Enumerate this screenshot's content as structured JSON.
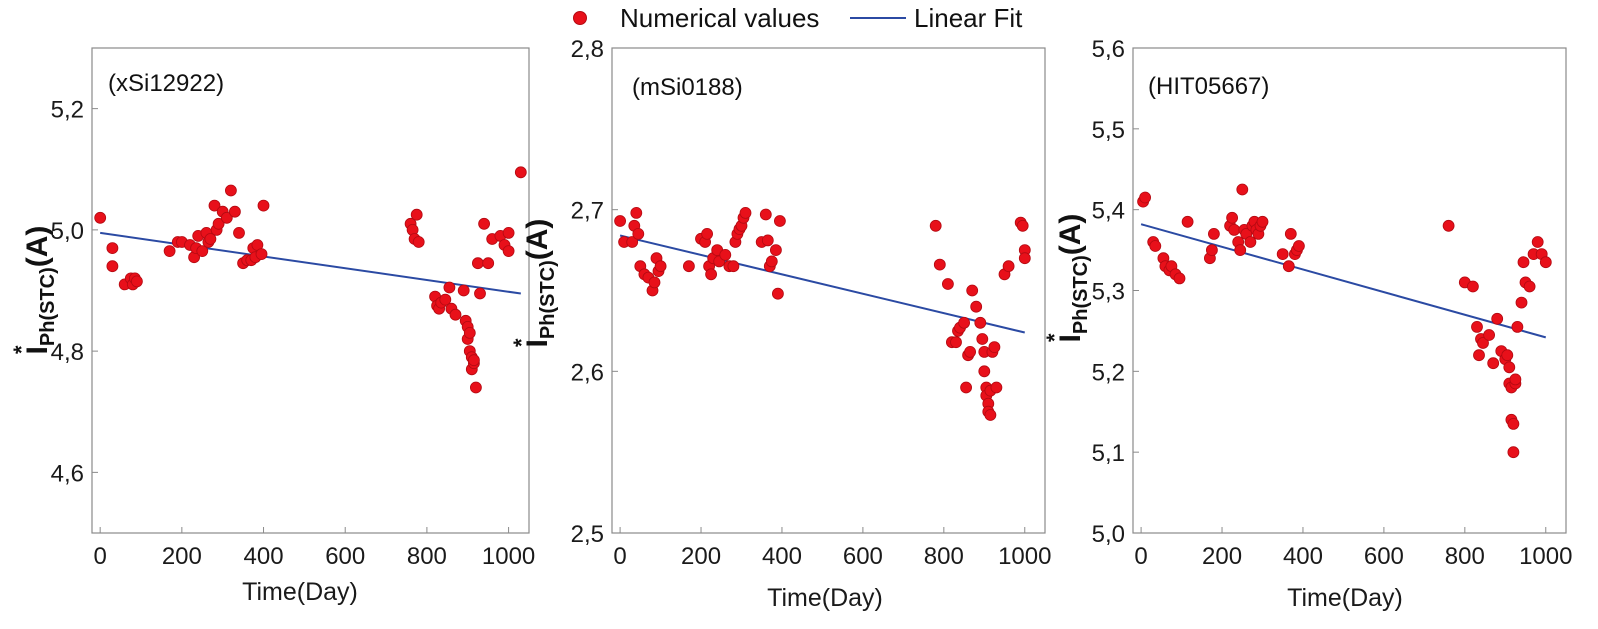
{
  "legend": {
    "points_label": "Numerical values",
    "line_label": "Linear Fit"
  },
  "colors": {
    "points": "#e8101a",
    "fit": "#2b4aa3",
    "axis": "#8a8a8a"
  },
  "chart_data": [
    {
      "type": "scatter",
      "title": "(xSi12922)",
      "xlabel": "Time(Day)",
      "ylabel": "I*Ph(STC)(A)",
      "xlim": [
        -20,
        1050
      ],
      "ylim": [
        4.5,
        5.3
      ],
      "xticks": [
        0,
        200,
        400,
        600,
        800,
        1000
      ],
      "xtick_labels": [
        "0",
        "200",
        "400",
        "600",
        "800",
        "1000"
      ],
      "yticks": [
        4.6,
        4.8,
        5.0,
        5.2
      ],
      "ytick_labels": [
        "4,6",
        "4,8",
        "5,0",
        "5,2"
      ],
      "fit": {
        "x": [
          0,
          1030
        ],
        "y": [
          4.995,
          4.895
        ]
      },
      "points": {
        "x": [
          0,
          30,
          30,
          60,
          75,
          80,
          85,
          90,
          170,
          190,
          200,
          220,
          230,
          235,
          240,
          250,
          260,
          265,
          270,
          280,
          285,
          290,
          300,
          310,
          320,
          330,
          340,
          350,
          360,
          370,
          375,
          380,
          385,
          395,
          400,
          760,
          765,
          770,
          775,
          780,
          820,
          825,
          830,
          835,
          845,
          855,
          860,
          870,
          890,
          895,
          900,
          900,
          905,
          905,
          910,
          910,
          915,
          915,
          920,
          925,
          930,
          940,
          950,
          960,
          980,
          990,
          1000,
          1000,
          1030
        ],
        "y": [
          5.02,
          4.97,
          4.94,
          4.91,
          4.92,
          4.91,
          4.92,
          4.915,
          4.965,
          4.98,
          4.98,
          4.975,
          4.955,
          4.97,
          4.99,
          4.965,
          4.995,
          4.98,
          4.985,
          5.04,
          5.0,
          5.01,
          5.03,
          5.02,
          5.065,
          5.03,
          4.995,
          4.945,
          4.95,
          4.95,
          4.97,
          4.955,
          4.975,
          4.96,
          5.04,
          5.01,
          5.0,
          4.985,
          5.025,
          4.98,
          4.89,
          4.875,
          4.87,
          4.88,
          4.885,
          4.905,
          4.87,
          4.86,
          4.9,
          4.85,
          4.84,
          4.82,
          4.83,
          4.8,
          4.79,
          4.77,
          4.78,
          4.785,
          4.74,
          4.945,
          4.895,
          5.01,
          4.945,
          4.985,
          4.99,
          4.975,
          4.965,
          4.995,
          5.095
        ]
      }
    },
    {
      "type": "scatter",
      "title": "(mSi0188)",
      "xlabel": "Time(Day)",
      "ylabel": "I*Ph(STC)(A)",
      "xlim": [
        -20,
        1050
      ],
      "ylim": [
        2.5,
        2.8
      ],
      "xticks": [
        0,
        200,
        400,
        600,
        800,
        1000
      ],
      "xtick_labels": [
        "0",
        "200",
        "400",
        "600",
        "800",
        "1000"
      ],
      "yticks": [
        2.5,
        2.6,
        2.7,
        2.8
      ],
      "ytick_labels": [
        "2,5",
        "2,6",
        "2,7",
        "2,8"
      ],
      "fit": {
        "x": [
          0,
          1000
        ],
        "y": [
          2.684,
          2.624
        ]
      },
      "points": {
        "x": [
          0,
          10,
          30,
          35,
          40,
          45,
          50,
          60,
          70,
          80,
          85,
          90,
          95,
          100,
          170,
          200,
          210,
          215,
          220,
          225,
          230,
          240,
          245,
          260,
          270,
          280,
          285,
          290,
          295,
          300,
          305,
          310,
          350,
          360,
          365,
          370,
          375,
          385,
          390,
          395,
          780,
          790,
          810,
          820,
          830,
          835,
          840,
          850,
          855,
          860,
          865,
          870,
          880,
          890,
          895,
          900,
          900,
          905,
          905,
          910,
          910,
          915,
          915,
          920,
          925,
          930,
          950,
          960,
          990,
          995,
          1000,
          1000
        ],
        "y": [
          2.693,
          2.68,
          2.68,
          2.69,
          2.698,
          2.685,
          2.665,
          2.66,
          2.658,
          2.65,
          2.655,
          2.67,
          2.662,
          2.665,
          2.665,
          2.682,
          2.68,
          2.685,
          2.665,
          2.66,
          2.67,
          2.675,
          2.668,
          2.672,
          2.665,
          2.665,
          2.68,
          2.685,
          2.688,
          2.69,
          2.695,
          2.698,
          2.68,
          2.697,
          2.681,
          2.665,
          2.668,
          2.675,
          2.648,
          2.693,
          2.69,
          2.666,
          2.654,
          2.618,
          2.618,
          2.625,
          2.627,
          2.63,
          2.59,
          2.61,
          2.612,
          2.65,
          2.64,
          2.63,
          2.62,
          2.612,
          2.6,
          2.59,
          2.585,
          2.58,
          2.575,
          2.573,
          2.588,
          2.612,
          2.615,
          2.59,
          2.66,
          2.665,
          2.692,
          2.69,
          2.675,
          2.67
        ]
      }
    },
    {
      "type": "scatter",
      "title": "(HIT05667)",
      "xlabel": "Time(Day)",
      "ylabel": "I*Ph(STC)(A)",
      "xlim": [
        -20,
        1050
      ],
      "ylim": [
        5.0,
        5.6
      ],
      "xticks": [
        0,
        200,
        400,
        600,
        800,
        1000
      ],
      "xtick_labels": [
        "0",
        "200",
        "400",
        "600",
        "800",
        "1000"
      ],
      "yticks": [
        5.0,
        5.1,
        5.2,
        5.3,
        5.4,
        5.5,
        5.6
      ],
      "ytick_labels": [
        "5,0",
        "5,1",
        "5,2",
        "5,3",
        "5,4",
        "5,5",
        "5,6"
      ],
      "fit": {
        "x": [
          0,
          1000
        ],
        "y": [
          5.382,
          5.242
        ]
      },
      "points": {
        "x": [
          5,
          10,
          30,
          35,
          55,
          60,
          70,
          75,
          85,
          95,
          115,
          170,
          175,
          180,
          220,
          225,
          230,
          240,
          245,
          250,
          255,
          260,
          270,
          275,
          280,
          285,
          290,
          295,
          300,
          350,
          365,
          370,
          380,
          385,
          390,
          760,
          800,
          820,
          830,
          835,
          840,
          845,
          860,
          870,
          880,
          890,
          900,
          905,
          910,
          910,
          915,
          915,
          920,
          920,
          925,
          925,
          930,
          940,
          945,
          950,
          960,
          970,
          980,
          990,
          1000
        ],
        "y": [
          5.41,
          5.415,
          5.36,
          5.355,
          5.34,
          5.33,
          5.325,
          5.33,
          5.32,
          5.315,
          5.385,
          5.34,
          5.35,
          5.37,
          5.38,
          5.39,
          5.375,
          5.36,
          5.35,
          5.425,
          5.375,
          5.37,
          5.36,
          5.38,
          5.385,
          5.375,
          5.37,
          5.38,
          5.385,
          5.345,
          5.33,
          5.37,
          5.345,
          5.35,
          5.355,
          5.38,
          5.31,
          5.305,
          5.255,
          5.22,
          5.24,
          5.235,
          5.245,
          5.21,
          5.265,
          5.225,
          5.215,
          5.22,
          5.205,
          5.185,
          5.18,
          5.14,
          5.135,
          5.1,
          5.185,
          5.19,
          5.255,
          5.285,
          5.335,
          5.31,
          5.305,
          5.345,
          5.36,
          5.345,
          5.335
        ]
      }
    }
  ]
}
